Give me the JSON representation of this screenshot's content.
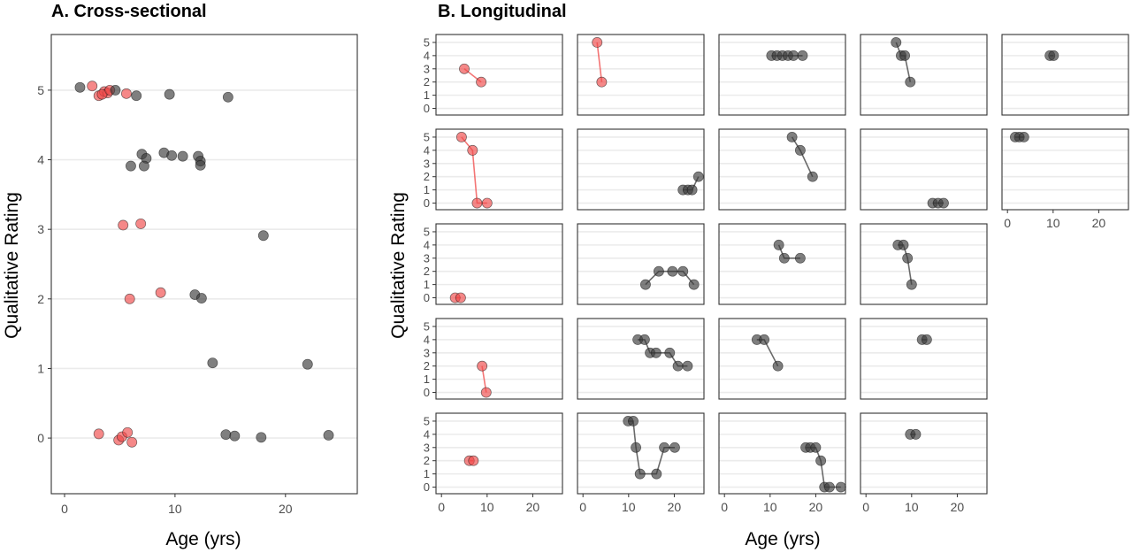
{
  "colors": {
    "group_red": "#f04848",
    "group_grey": "#3a3a3a",
    "stroke": "#333333",
    "grid": "#ebebeb"
  },
  "chart_data": [
    {
      "type": "scatter",
      "title": "A. Cross-sectional",
      "xlabel": "Age (yrs)",
      "ylabel": "Qualitative Rating",
      "xlim": [
        -1.2,
        26.5
      ],
      "ylim": [
        -0.8,
        5.8
      ],
      "xticks": [
        0,
        10,
        20
      ],
      "yticks": [
        0,
        1,
        2,
        3,
        4,
        5
      ],
      "series": [
        {
          "color": "red",
          "points": [
            [
              2.5,
              5.06
            ],
            [
              3.1,
              4.92
            ],
            [
              3.6,
              4.98
            ],
            [
              3.9,
              4.96
            ],
            [
              3.4,
              4.94
            ],
            [
              4.1,
              5.0
            ],
            [
              5.6,
              4.95
            ],
            [
              5.3,
              3.06
            ],
            [
              6.9,
              3.08
            ],
            [
              5.9,
              2.0
            ],
            [
              8.7,
              2.09
            ],
            [
              3.1,
              0.06
            ],
            [
              4.9,
              -0.03
            ],
            [
              5.2,
              0.02
            ],
            [
              5.7,
              0.08
            ],
            [
              6.1,
              -0.06
            ]
          ]
        },
        {
          "color": "grey",
          "points": [
            [
              1.4,
              5.04
            ],
            [
              4.6,
              5.0
            ],
            [
              6.5,
              4.92
            ],
            [
              9.5,
              4.94
            ],
            [
              14.8,
              4.9
            ],
            [
              6.0,
              3.91
            ],
            [
              7.0,
              4.08
            ],
            [
              7.4,
              4.02
            ],
            [
              7.2,
              3.91
            ],
            [
              9.0,
              4.1
            ],
            [
              9.7,
              4.06
            ],
            [
              10.7,
              4.05
            ],
            [
              12.1,
              4.05
            ],
            [
              12.3,
              3.98
            ],
            [
              12.3,
              3.92
            ],
            [
              18.0,
              2.91
            ],
            [
              11.8,
              2.06
            ],
            [
              12.4,
              2.01
            ],
            [
              13.4,
              1.08
            ],
            [
              22.0,
              1.06
            ],
            [
              14.6,
              0.05
            ],
            [
              15.4,
              0.03
            ],
            [
              17.8,
              0.01
            ],
            [
              23.9,
              0.04
            ]
          ]
        }
      ]
    },
    {
      "type": "line",
      "title": "B. Longitudinal",
      "xlabel": "Age (yrs)",
      "ylabel": "Qualitative Rating",
      "xlim": [
        -1.2,
        26.5
      ],
      "ylim": [
        -0.5,
        5.6
      ],
      "xticks": [
        0,
        10,
        20
      ],
      "yticks": [
        0,
        1,
        2,
        3,
        4,
        5
      ],
      "facets": [
        {
          "row": 0,
          "col": 0,
          "color": "red",
          "points": [
            [
              5.0,
              3
            ],
            [
              8.7,
              2
            ]
          ]
        },
        {
          "row": 0,
          "col": 1,
          "color": "red",
          "points": [
            [
              3.1,
              5
            ],
            [
              4.1,
              2
            ]
          ]
        },
        {
          "row": 0,
          "col": 2,
          "color": "grey",
          "points": [
            [
              10.3,
              4
            ],
            [
              11.5,
              4
            ],
            [
              12.7,
              4
            ],
            [
              13.9,
              4
            ],
            [
              15.1,
              4
            ],
            [
              17.1,
              4
            ]
          ]
        },
        {
          "row": 0,
          "col": 3,
          "color": "grey",
          "points": [
            [
              6.6,
              5
            ],
            [
              7.7,
              4
            ],
            [
              8.5,
              4
            ],
            [
              9.7,
              2
            ]
          ]
        },
        {
          "row": 0,
          "col": 4,
          "color": "grey",
          "points": [
            [
              9.3,
              4
            ],
            [
              10.1,
              4
            ]
          ]
        },
        {
          "row": 1,
          "col": 0,
          "color": "red",
          "points": [
            [
              4.4,
              5
            ],
            [
              6.8,
              4
            ],
            [
              7.8,
              0
            ],
            [
              10.0,
              0
            ]
          ]
        },
        {
          "row": 1,
          "col": 1,
          "color": "grey",
          "points": [
            [
              21.9,
              1
            ],
            [
              23.0,
              1
            ],
            [
              23.9,
              1
            ],
            [
              25.3,
              2
            ]
          ]
        },
        {
          "row": 1,
          "col": 2,
          "color": "grey",
          "points": [
            [
              14.8,
              5
            ],
            [
              16.6,
              4
            ],
            [
              19.3,
              2
            ]
          ]
        },
        {
          "row": 1,
          "col": 3,
          "color": "grey",
          "points": [
            [
              14.6,
              0
            ],
            [
              15.8,
              0
            ],
            [
              17.0,
              0
            ]
          ]
        },
        {
          "row": 1,
          "col": 4,
          "color": "grey",
          "points": [
            [
              1.7,
              5
            ],
            [
              2.6,
              5
            ],
            [
              3.6,
              5
            ]
          ]
        },
        {
          "row": 2,
          "col": 0,
          "color": "red",
          "points": [
            [
              3.0,
              0
            ],
            [
              4.2,
              0
            ]
          ]
        },
        {
          "row": 2,
          "col": 1,
          "color": "grey",
          "points": [
            [
              13.7,
              1
            ],
            [
              16.6,
              2
            ],
            [
              19.6,
              2
            ],
            [
              21.9,
              2
            ],
            [
              24.3,
              1
            ]
          ]
        },
        {
          "row": 2,
          "col": 2,
          "color": "grey",
          "points": [
            [
              11.9,
              4
            ],
            [
              13.1,
              3
            ],
            [
              16.6,
              3
            ]
          ]
        },
        {
          "row": 2,
          "col": 3,
          "color": "grey",
          "points": [
            [
              7.0,
              4
            ],
            [
              8.2,
              4
            ],
            [
              9.1,
              3
            ],
            [
              10.0,
              1
            ]
          ]
        },
        {
          "row": 3,
          "col": 0,
          "color": "red",
          "points": [
            [
              8.9,
              2
            ],
            [
              9.8,
              0
            ]
          ]
        },
        {
          "row": 3,
          "col": 1,
          "color": "grey",
          "points": [
            [
              12.0,
              4
            ],
            [
              13.5,
              4
            ],
            [
              14.7,
              3
            ],
            [
              16.0,
              3
            ],
            [
              19.0,
              3
            ],
            [
              20.8,
              2
            ],
            [
              22.9,
              2
            ]
          ]
        },
        {
          "row": 3,
          "col": 2,
          "color": "grey",
          "points": [
            [
              7.1,
              4
            ],
            [
              8.7,
              4
            ],
            [
              11.7,
              2
            ]
          ]
        },
        {
          "row": 3,
          "col": 3,
          "color": "grey",
          "points": [
            [
              12.3,
              4
            ],
            [
              13.3,
              4
            ]
          ]
        },
        {
          "row": 4,
          "col": 0,
          "color": "red",
          "points": [
            [
              6.1,
              2
            ],
            [
              7.0,
              2
            ]
          ]
        },
        {
          "row": 4,
          "col": 1,
          "color": "grey",
          "points": [
            [
              9.9,
              5
            ],
            [
              11.0,
              5
            ],
            [
              11.6,
              3
            ],
            [
              12.5,
              1
            ],
            [
              16.1,
              1
            ],
            [
              17.8,
              3
            ],
            [
              20.1,
              3
            ]
          ]
        },
        {
          "row": 4,
          "col": 2,
          "color": "grey",
          "points": [
            [
              17.8,
              3
            ],
            [
              18.8,
              3
            ],
            [
              20.0,
              3
            ],
            [
              21.1,
              2
            ],
            [
              21.9,
              0
            ],
            [
              23.0,
              0
            ],
            [
              25.5,
              0
            ]
          ]
        },
        {
          "row": 4,
          "col": 3,
          "color": "grey",
          "points": [
            [
              9.7,
              4
            ],
            [
              10.9,
              4
            ]
          ]
        }
      ]
    }
  ]
}
